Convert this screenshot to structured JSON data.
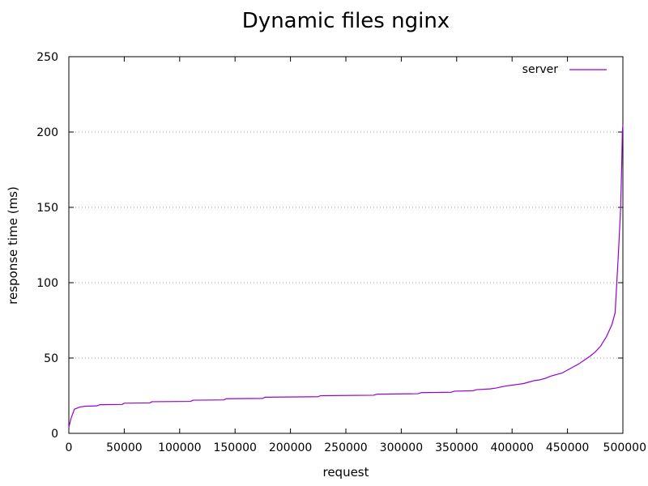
{
  "chart_data": {
    "type": "line",
    "title": "Dynamic files nginx",
    "xlabel": "request",
    "ylabel": "response time (ms)",
    "xlim": [
      0,
      500000
    ],
    "ylim": [
      0,
      250
    ],
    "xticks": [
      0,
      50000,
      100000,
      150000,
      200000,
      250000,
      300000,
      350000,
      400000,
      450000,
      500000
    ],
    "yticks": [
      0,
      50,
      100,
      150,
      200,
      250
    ],
    "grid": "horizontal dotted",
    "legend_position": "top-right",
    "series": [
      {
        "name": "server",
        "color": "#9400d3",
        "x": [
          0,
          2000,
          5000,
          10000,
          15000,
          25000,
          28000,
          48000,
          50000,
          73000,
          75000,
          110000,
          112000,
          140000,
          142000,
          175000,
          177000,
          225000,
          227000,
          275000,
          278000,
          315000,
          318000,
          345000,
          348000,
          365000,
          368000,
          380000,
          385000,
          390000,
          395000,
          400000,
          405000,
          410000,
          415000,
          420000,
          425000,
          430000,
          435000,
          440000,
          445000,
          450000,
          455000,
          460000,
          465000,
          470000,
          475000,
          480000,
          485000,
          490000,
          493000,
          496000,
          498000,
          499000,
          499500,
          500000
        ],
        "y": [
          4,
          10,
          16,
          17.5,
          18,
          18.2,
          19,
          19.2,
          20,
          20.2,
          21,
          21.2,
          22,
          22.2,
          23,
          23.2,
          24,
          24.3,
          25,
          25.3,
          26,
          26.3,
          27,
          27.3,
          28,
          28.3,
          29,
          29.5,
          30,
          30.8,
          31.5,
          32,
          32.5,
          33,
          34,
          35,
          35.5,
          36.5,
          38,
          39,
          40,
          42,
          44,
          46,
          48.5,
          51,
          54,
          58,
          64,
          72,
          80,
          120,
          150,
          180,
          200,
          205
        ]
      }
    ]
  }
}
